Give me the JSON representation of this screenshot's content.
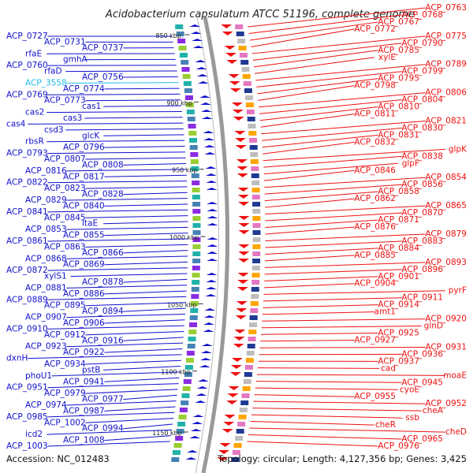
{
  "title": "Acidobacterium capsulatum ATCC 51196, complete genome",
  "footer": {
    "accession": "Accession: NC_012483",
    "summary": "Topology: circular; Length: 4,127,356 bp; Genes: 3,425"
  },
  "colors": {
    "left_strand": "#1010cc",
    "right_strand": "#ee1111",
    "highlight": "#22bbee",
    "backbone": "#999999"
  },
  "ticks": [
    {
      "label": "850 kbp.",
      "value_kbp": 850
    },
    {
      "label": "900 kbp",
      "value_kbp": 900
    },
    {
      "label": "950 kbp",
      "value_kbp": 950
    },
    {
      "label": "1000 kbp",
      "value_kbp": 1000
    },
    {
      "label": "1050 kbp",
      "value_kbp": 1050
    },
    {
      "label": "1100 kbp",
      "value_kbp": 1100
    },
    {
      "label": "1150 kbp",
      "value_kbp": 1150
    }
  ],
  "left_labels": [
    "ACP_0727",
    "ACP_0731",
    "ACP_0737",
    "rfaE",
    "gmhA",
    "ACP_0760",
    "rfaD",
    "ACP_0756",
    "ACP_3558",
    "ACP_0774",
    "ACP_0769",
    "ACP_0773",
    "cas1",
    "cas2",
    "cas3",
    "cas4",
    "csd3",
    "glcK",
    "rbsR",
    "ACP_0796",
    "ACP_0793",
    "ACP_0807",
    "ACP_0808",
    "ACP_0816",
    "ACP_0817",
    "ACP_0822",
    "ACP_0823",
    "ACP_0828",
    "ACP_0829",
    "ACP_0840",
    "ACP_0841",
    "ACP_0845",
    "ltaE",
    "ACP_0853",
    "ACP_0855",
    "ACP_0861",
    "ACP_0863",
    "ACP_0866",
    "ACP_0868",
    "ACP_0869",
    "ACP_0872",
    "xylS1",
    "ACP_0878",
    "ACP_0881",
    "ACP_0886",
    "ACP_0889",
    "ACP_0895",
    "ACP_0894",
    "ACP_0907",
    "ACP_0906",
    "ACP_0910",
    "ACP_0912",
    "ACP_0916",
    "ACP_0923",
    "ACP_0922",
    "dxnH",
    "ACP_0934",
    "pstB",
    "phoU1",
    "ACP_0941",
    "ACP_0951",
    "ACP_0979",
    "ACP_0977",
    "ACP_0974",
    "ACP_0987",
    "ACP_0985",
    "ACP_1002",
    "ACP_0994",
    "icd2",
    "ACP_1008",
    "ACP_1003"
  ],
  "right_labels": [
    "ACP_0763",
    "ACP_0768",
    "ACP_0767",
    "ACP_0772",
    "ACP_0775",
    "ACP_0790",
    "ACP_0785",
    "xylE",
    "ACP_0789",
    "ACP_0799",
    "ACP_0795",
    "ACP_0798",
    "ACP_0806",
    "ACP_0804",
    "ACP_0810",
    "ACP_0811",
    "ACP_0821",
    "ACP_0830",
    "ACP_0831",
    "ACP_0832",
    "glpK",
    "ACP_0838",
    "glpF",
    "ACP_0846",
    "ACP_0854",
    "ACP_0856",
    "ACP_0858",
    "ACP_0862",
    "ACP_0865",
    "ACP_0870",
    "ACP_0871",
    "ACP_0876",
    "ACP_0879",
    "ACP_0883",
    "ACP_0884",
    "ACP_0885",
    "ACP_0893",
    "ACP_0896",
    "ACP_0901",
    "ACP_0904",
    "pyrF",
    "ACP_0911",
    "ACP_0914",
    "amt1",
    "ACP_0920",
    "glnD",
    "ACP_0925",
    "ACP_0927",
    "ACP_0931",
    "ACP_0936",
    "ACP_0937",
    "cad",
    "moaE",
    "ACP_0945",
    "cyoE",
    "ACP_0955",
    "ACP_0952",
    "cheA",
    "ssb",
    "cheR",
    "cheD",
    "ACP_0965",
    "ACP_0976"
  ]
}
